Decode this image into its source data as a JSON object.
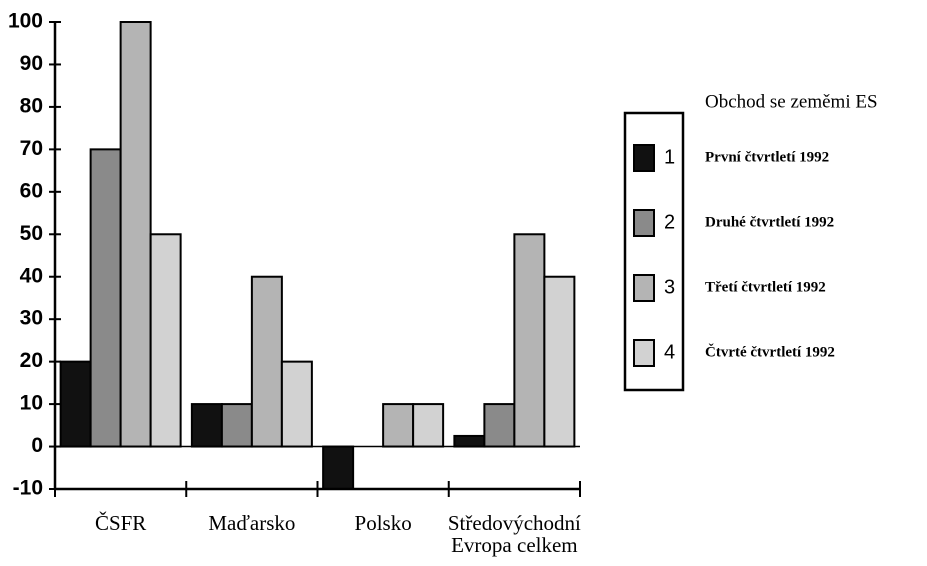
{
  "chart_data": {
    "type": "bar",
    "categories": [
      "ČSFR",
      "Maďarsko",
      "Polsko",
      "Středovýchodní Evropa celkem"
    ],
    "legend_title": "Obchod se zeměmi ES",
    "series": [
      {
        "key": "1",
        "name": "První čtvrtletí 1992",
        "color": "#111111",
        "values": [
          20,
          10,
          -10,
          2.5
        ]
      },
      {
        "key": "2",
        "name": "Druhé čtvrtletí 1992",
        "color": "#8a8a8a",
        "values": [
          70,
          10,
          0,
          10
        ]
      },
      {
        "key": "3",
        "name": "Třetí čtvrtletí 1992",
        "color": "#b4b4b4",
        "values": [
          100,
          40,
          10,
          50
        ]
      },
      {
        "key": "4",
        "name": "Čtvrté čtvrtletí 1992",
        "color": "#d2d2d2",
        "values": [
          50,
          20,
          10,
          40
        ]
      }
    ],
    "ylim": [
      -10,
      100
    ],
    "yticks": [
      -10,
      0,
      10,
      20,
      30,
      40,
      50,
      60,
      70,
      80,
      90,
      100
    ],
    "legend": "right"
  }
}
